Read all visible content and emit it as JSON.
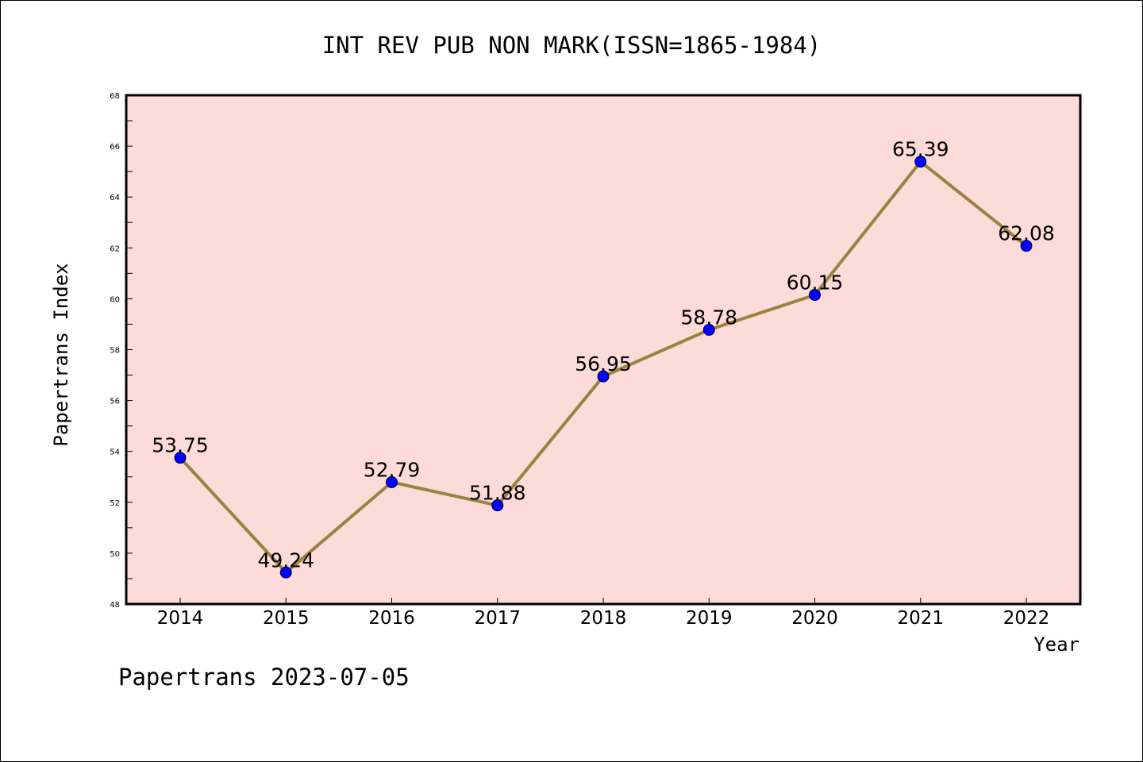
{
  "chart_data": {
    "type": "line",
    "title": "INT REV PUB NON MARK(ISSN=1865-1984)",
    "xlabel": "Year",
    "ylabel": "Papertrans Index",
    "categories": [
      "2014",
      "2015",
      "2016",
      "2017",
      "2018",
      "2019",
      "2020",
      "2021",
      "2022"
    ],
    "series": [
      {
        "values": [
          53.75,
          49.24,
          52.79,
          51.88,
          56.95,
          58.78,
          60.15,
          65.39,
          62.08
        ],
        "labels": [
          "53.75",
          "49.24",
          "52.79",
          "51.88",
          "56.95",
          "58.78",
          "60.15",
          "65.39",
          "62.08"
        ]
      }
    ],
    "ylim": [
      48,
      68
    ],
    "yticks": [
      "48",
      "50",
      "52",
      "54",
      "56",
      "58",
      "60",
      "62",
      "64",
      "66",
      "68"
    ],
    "grid": false,
    "colors": {
      "plot_background": "#fddbd8",
      "line": "#9a8240",
      "marker": "#0000ff"
    }
  },
  "footer": "Papertrans 2023-07-05"
}
